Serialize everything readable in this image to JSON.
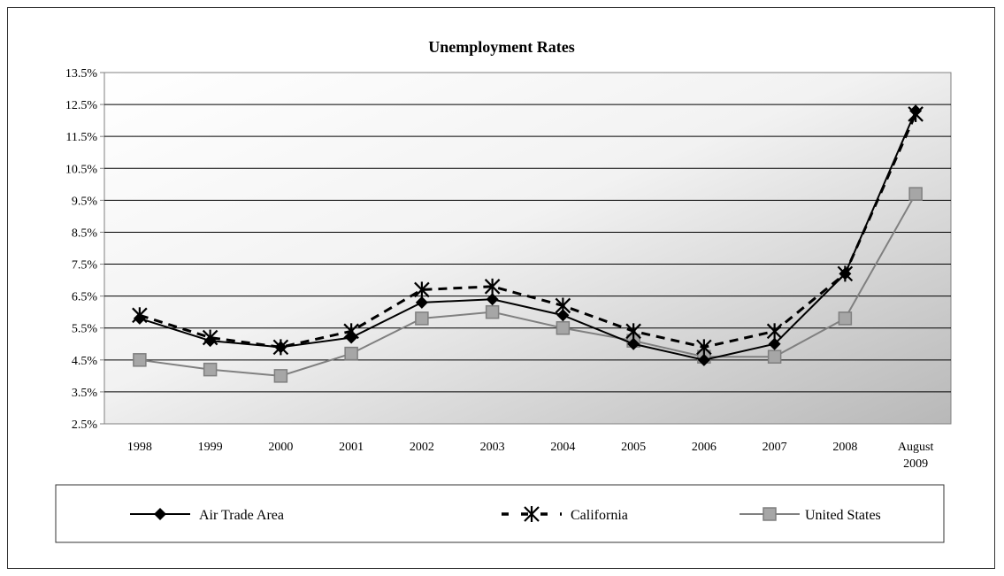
{
  "chart_data": {
    "type": "line",
    "title": "Unemployment Rates",
    "xlabel": "",
    "ylabel": "",
    "ylim": [
      2.5,
      13.5
    ],
    "yticks": [
      "2.5%",
      "3.5%",
      "4.5%",
      "5.5%",
      "6.5%",
      "7.5%",
      "8.5%",
      "9.5%",
      "10.5%",
      "11.5%",
      "12.5%",
      "13.5%"
    ],
    "ytick_values": [
      2.5,
      3.5,
      4.5,
      5.5,
      6.5,
      7.5,
      8.5,
      9.5,
      10.5,
      11.5,
      12.5,
      13.5
    ],
    "categories": [
      [
        "1998"
      ],
      [
        "1999"
      ],
      [
        "2000"
      ],
      [
        "2001"
      ],
      [
        "2002"
      ],
      [
        "2003"
      ],
      [
        "2004"
      ],
      [
        "2005"
      ],
      [
        "2006"
      ],
      [
        "2007"
      ],
      [
        "2008"
      ],
      [
        "August",
        "2009"
      ]
    ],
    "grid": true,
    "legend_position": "bottom",
    "series": [
      {
        "name": "Air Trade Area",
        "values": [
          5.8,
          5.1,
          4.9,
          5.2,
          6.3,
          6.4,
          5.9,
          5.0,
          4.5,
          5.0,
          7.2,
          12.3
        ],
        "color": "#000000",
        "marker": "diamond",
        "dash": "solid"
      },
      {
        "name": "California",
        "values": [
          5.9,
          5.2,
          4.9,
          5.4,
          6.7,
          6.8,
          6.2,
          5.4,
          4.9,
          5.4,
          7.2,
          12.2
        ],
        "color": "#000000",
        "marker": "asterisk",
        "dash": "dashed"
      },
      {
        "name": "United States",
        "values": [
          4.5,
          4.2,
          4.0,
          4.7,
          5.8,
          6.0,
          5.5,
          5.1,
          4.6,
          4.6,
          5.8,
          9.7
        ],
        "color": "#808080",
        "marker": "square",
        "dash": "solid"
      }
    ]
  }
}
